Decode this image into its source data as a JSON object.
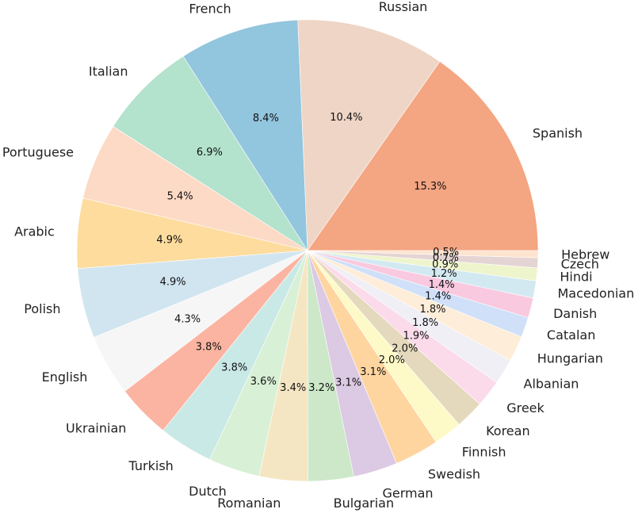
{
  "chart_data": {
    "type": "pie",
    "title": "",
    "start_angle_deg": 0,
    "direction": "counterclockwise",
    "slices": [
      {
        "label": "Spanish",
        "value": 15.3,
        "pct_text": "15.3%",
        "color": "#f4a582"
      },
      {
        "label": "Russian",
        "value": 10.4,
        "pct_text": "10.4%",
        "color": "#eed5c5"
      },
      {
        "label": "French",
        "value": 8.4,
        "pct_text": "8.4%",
        "color": "#92c5de"
      },
      {
        "label": "Italian",
        "value": 6.9,
        "pct_text": "6.9%",
        "color": "#b3e2cd"
      },
      {
        "label": "Portuguese",
        "value": 5.4,
        "pct_text": "5.4%",
        "color": "#fddac6"
      },
      {
        "label": "Arabic",
        "value": 4.9,
        "pct_text": "4.9%",
        "color": "#fddc9e"
      },
      {
        "label": "Polish",
        "value": 4.9,
        "pct_text": "4.9%",
        "color": "#d1e5f0"
      },
      {
        "label": "English",
        "value": 4.3,
        "pct_text": "4.3%",
        "color": "#f6f6f6"
      },
      {
        "label": "Ukrainian",
        "value": 3.8,
        "pct_text": "3.8%",
        "color": "#fbb4a1"
      },
      {
        "label": "Turkish",
        "value": 3.8,
        "pct_text": "3.8%",
        "color": "#c9e9e6"
      },
      {
        "label": "Dutch",
        "value": 3.6,
        "pct_text": "3.6%",
        "color": "#d8f0d5"
      },
      {
        "label": "Romanian",
        "value": 3.4,
        "pct_text": "3.4%",
        "color": "#f5e6c3"
      },
      {
        "label": "Bulgarian",
        "value": 3.2,
        "pct_text": "3.2%",
        "color": "#cce8c8"
      },
      {
        "label": "German",
        "value": 3.1,
        "pct_text": "3.1%",
        "color": "#dcc9e3"
      },
      {
        "label": "Swedish",
        "value": 3.1,
        "pct_text": "3.1%",
        "color": "#fed59f"
      },
      {
        "label": "Finnish",
        "value": 2.0,
        "pct_text": "2.0%",
        "color": "#fefac7"
      },
      {
        "label": "Korean",
        "value": 2.0,
        "pct_text": "2.0%",
        "color": "#e4d8bd"
      },
      {
        "label": "Greek",
        "value": 1.9,
        "pct_text": "1.9%",
        "color": "#fbdaea"
      },
      {
        "label": "Albanian",
        "value": 1.8,
        "pct_text": "1.8%",
        "color": "#efeff5"
      },
      {
        "label": "Hungarian",
        "value": 1.8,
        "pct_text": "1.8%",
        "color": "#feedd8"
      },
      {
        "label": "Catalan",
        "value": 1.4,
        "pct_text": "1.4%",
        "color": "#cfe0f8"
      },
      {
        "label": "Danish",
        "value": 1.4,
        "pct_text": "1.4%",
        "color": "#f9c9e0"
      },
      {
        "label": "Macedonian",
        "value": 1.2,
        "pct_text": "1.2%",
        "color": "#d3e9f2"
      },
      {
        "label": "Hindi",
        "value": 0.9,
        "pct_text": "0.9%",
        "color": "#eef5cc"
      },
      {
        "label": "Czech",
        "value": 0.7,
        "pct_text": "0.7%",
        "color": "#e5d4d4"
      },
      {
        "label": "Hebrew",
        "value": 0.5,
        "pct_text": "0.5%",
        "color": "#fde4cf"
      }
    ]
  }
}
